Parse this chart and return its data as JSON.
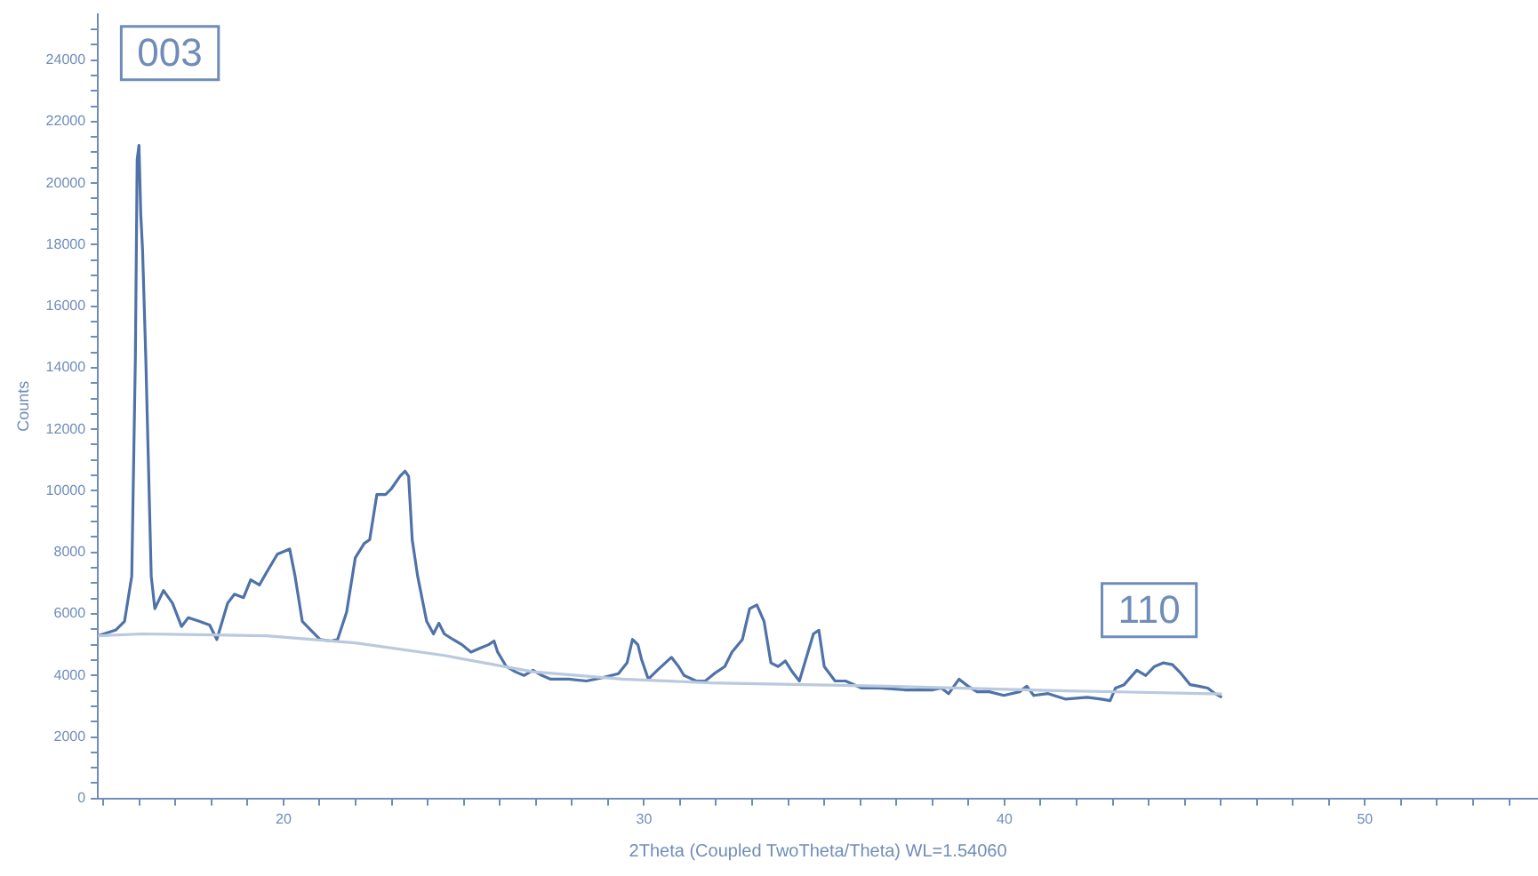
{
  "chart_data": {
    "type": "line",
    "xlabel": "2Theta (Coupled TwoTheta/Theta) WL=1.54060",
    "ylabel": "Counts",
    "xlim": [
      14.85,
      54.8
    ],
    "xticks": [
      {
        "value": 15,
        "label": null
      },
      {
        "value": 16,
        "label": null
      },
      {
        "value": 17,
        "label": null
      },
      {
        "value": 18,
        "label": null
      },
      {
        "value": 19,
        "label": null
      },
      20,
      {
        "value": 21,
        "label": null
      },
      {
        "value": 22,
        "label": null
      },
      {
        "value": 23,
        "label": null
      },
      {
        "value": 24,
        "label": null
      },
      {
        "value": 25,
        "label": null
      },
      {
        "value": 26,
        "label": null
      },
      {
        "value": 27,
        "label": null
      },
      {
        "value": 28,
        "label": null
      },
      {
        "value": 29,
        "label": null
      },
      30,
      {
        "value": 31,
        "label": null
      },
      {
        "value": 32,
        "label": null
      },
      {
        "value": 33,
        "label": null
      },
      {
        "value": 34,
        "label": null
      },
      {
        "value": 35,
        "label": null
      },
      {
        "value": 36,
        "label": null
      },
      {
        "value": 37,
        "label": null
      },
      {
        "value": 38,
        "label": null
      },
      {
        "value": 39,
        "label": null
      },
      40,
      {
        "value": 41,
        "label": null
      },
      {
        "value": 42,
        "label": null
      },
      {
        "value": 43,
        "label": null
      },
      {
        "value": 44,
        "label": null
      },
      {
        "value": 45,
        "label": null
      },
      {
        "value": 46,
        "label": null
      },
      {
        "value": 47,
        "label": null
      },
      {
        "value": 48,
        "label": null
      },
      {
        "value": 49,
        "label": null
      },
      50,
      {
        "value": 51,
        "label": null
      },
      {
        "value": 52,
        "label": null
      },
      {
        "value": 53,
        "label": null
      },
      {
        "value": 54,
        "label": null
      }
    ],
    "ylim": [
      0,
      25500
    ],
    "yticks": [
      0,
      {
        "value": 500,
        "label": null
      },
      {
        "value": 1000,
        "label": null
      },
      {
        "value": 1500,
        "label": null
      },
      2000,
      {
        "value": 2500,
        "label": null
      },
      {
        "value": 3000,
        "label": null
      },
      {
        "value": 3500,
        "label": null
      },
      4000,
      {
        "value": 4500,
        "label": null
      },
      {
        "value": 5000,
        "label": null
      },
      {
        "value": 5500,
        "label": null
      },
      6000,
      {
        "value": 6500,
        "label": null
      },
      {
        "value": 7000,
        "label": null
      },
      {
        "value": 7500,
        "label": null
      },
      8000,
      {
        "value": 8500,
        "label": null
      },
      {
        "value": 9000,
        "label": null
      },
      {
        "value": 9500,
        "label": null
      },
      10000,
      {
        "value": 10500,
        "label": null
      },
      {
        "value": 11000,
        "label": null
      },
      {
        "value": 11500,
        "label": null
      },
      12000,
      {
        "value": 12500,
        "label": null
      },
      {
        "value": 13000,
        "label": null
      },
      {
        "value": 13500,
        "label": null
      },
      14000,
      {
        "value": 14500,
        "label": null
      },
      {
        "value": 15000,
        "label": null
      },
      {
        "value": 15500,
        "label": null
      },
      16000,
      {
        "value": 16500,
        "label": null
      },
      {
        "value": 17000,
        "label": null
      },
      {
        "value": 17500,
        "label": null
      },
      18000,
      {
        "value": 18500,
        "label": null
      },
      {
        "value": 19000,
        "label": null
      },
      {
        "value": 19500,
        "label": null
      },
      20000,
      {
        "value": 20500,
        "label": null
      },
      {
        "value": 21000,
        "label": null
      },
      {
        "value": 21500,
        "label": null
      },
      22000,
      {
        "value": 22500,
        "label": null
      },
      {
        "value": 23000,
        "label": null
      },
      {
        "value": 23500,
        "label": null
      },
      24000,
      {
        "value": 24500,
        "label": null
      },
      {
        "value": 25000,
        "label": null
      }
    ],
    "grid": false,
    "legend": false,
    "marker": "none",
    "line_style": "solid",
    "series": [
      {
        "color": "#4f72a8",
        "x": [
          14.85,
          15.34,
          15.59,
          15.79,
          15.89,
          15.94,
          15.99,
          16.04,
          16.09,
          16.18,
          16.33,
          16.43,
          16.67,
          16.92,
          17.17,
          17.36,
          17.66,
          17.95,
          18.15,
          18.45,
          18.64,
          18.89,
          19.09,
          19.33,
          19.53,
          19.83,
          20.17,
          20.32,
          20.52,
          20.76,
          21.01,
          21.31,
          21.5,
          21.75,
          21.99,
          22.24,
          22.39,
          22.59,
          22.83,
          22.98,
          23.23,
          23.37,
          23.47,
          23.57,
          23.72,
          23.97,
          24.16,
          24.31,
          24.46,
          24.7,
          24.95,
          25.2,
          25.44,
          25.69,
          25.84,
          25.94,
          26.18,
          26.43,
          26.67,
          26.92,
          27.17,
          27.41,
          27.91,
          28.4,
          28.89,
          29.29,
          29.53,
          29.68,
          29.83,
          29.93,
          30.12,
          30.37,
          30.76,
          30.96,
          31.11,
          31.45,
          31.7,
          31.95,
          32.24,
          32.44,
          32.73,
          32.93,
          33.13,
          33.33,
          33.52,
          33.72,
          33.92,
          34.11,
          34.31,
          34.7,
          34.85,
          35.0,
          35.3,
          35.59,
          36.04,
          36.53,
          37.27,
          38.01,
          38.25,
          38.45,
          38.74,
          38.99,
          39.24,
          39.58,
          39.98,
          40.42,
          40.62,
          40.81,
          41.21,
          41.7,
          42.29,
          42.68,
          42.93,
          43.08,
          43.32,
          43.67,
          43.92,
          44.16,
          44.41,
          44.66,
          44.9,
          45.15,
          45.39,
          45.64,
          45.84,
          46.03
        ],
        "values": [
          5290,
          5470,
          5760,
          7230,
          14290,
          20760,
          21230,
          18990,
          17820,
          14290,
          7230,
          6170,
          6760,
          6350,
          5590,
          5880,
          5760,
          5640,
          5170,
          6350,
          6640,
          6530,
          7110,
          6940,
          7350,
          7940,
          8110,
          7230,
          5760,
          5470,
          5170,
          5120,
          5170,
          6060,
          7820,
          8290,
          8410,
          9880,
          9880,
          10050,
          10470,
          10640,
          10470,
          8410,
          7230,
          5760,
          5350,
          5700,
          5350,
          5170,
          5000,
          4760,
          4880,
          5000,
          5120,
          4760,
          4290,
          4120,
          4000,
          4170,
          4000,
          3880,
          3880,
          3820,
          3940,
          4060,
          4410,
          5170,
          5000,
          4530,
          3880,
          4170,
          4590,
          4290,
          4000,
          3820,
          3820,
          4060,
          4290,
          4760,
          5170,
          6170,
          6290,
          5760,
          4410,
          4290,
          4470,
          4120,
          3820,
          5350,
          5470,
          4290,
          3820,
          3820,
          3590,
          3590,
          3530,
          3530,
          3590,
          3410,
          3880,
          3650,
          3470,
          3470,
          3350,
          3470,
          3650,
          3350,
          3410,
          3230,
          3290,
          3230,
          3180,
          3590,
          3700,
          4170,
          4000,
          4290,
          4410,
          4350,
          4060,
          3700,
          3650,
          3590,
          3410,
          3290
        ]
      },
      {
        "color": "#b9c9de",
        "x": [
          14.85,
          16.09,
          19.53,
          21.99,
          24.46,
          26.92,
          29.39,
          31.85,
          36.77,
          41.7,
          46.03
        ],
        "values": [
          5290,
          5350,
          5290,
          5060,
          4650,
          4120,
          3880,
          3760,
          3650,
          3500,
          3400
        ]
      }
    ],
    "annotations": [
      "003",
      "110"
    ]
  }
}
